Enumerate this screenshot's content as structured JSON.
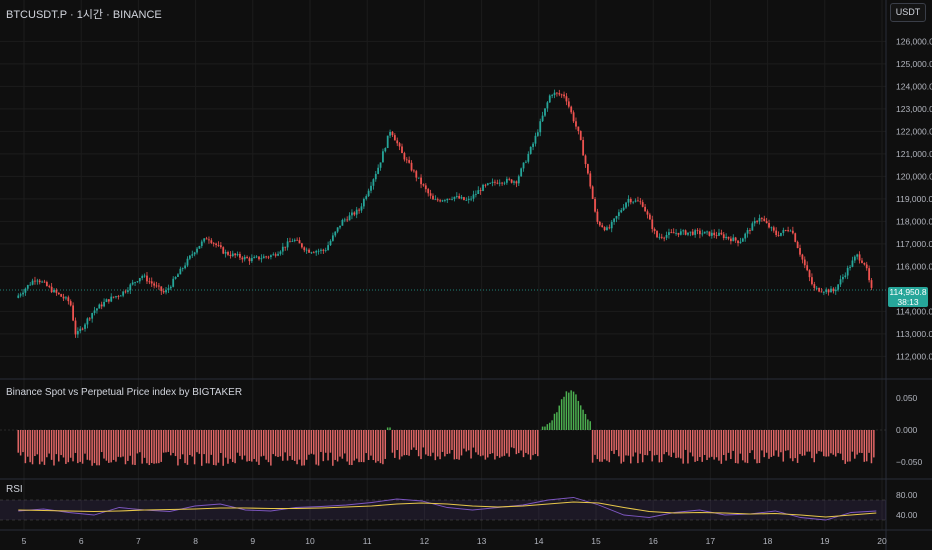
{
  "header": {
    "symbol_title": "BTCUSDT.P · 1시간 · BINANCE",
    "currency_button": "USDT"
  },
  "price_axis": {
    "labels": [
      "126,000.0",
      "125,000.0",
      "124,000.0",
      "123,000.0",
      "122,000.0",
      "121,000.0",
      "120,000.0",
      "119,000.0",
      "118,000.0",
      "117,000.0",
      "116,000.0",
      "114,000.0",
      "113,000.0",
      "112,000.0"
    ],
    "current_price": "114,950.8",
    "countdown": "38:13"
  },
  "indicator_panel": {
    "label": "Binance Spot vs Perpetual Price index by BIGTAKER",
    "axis_labels": [
      "0.050",
      "0.000",
      "−0.050"
    ]
  },
  "rsi_panel": {
    "label": "RSI",
    "axis_labels": [
      "80.00",
      "40.00"
    ]
  },
  "time_axis": {
    "labels": [
      "5",
      "6",
      "7",
      "8",
      "9",
      "10",
      "11",
      "12",
      "13",
      "14",
      "15",
      "16",
      "17",
      "18",
      "19",
      "20"
    ]
  },
  "colors": {
    "background": "#0f0f0f",
    "up": "#26a69a",
    "down": "#ef5350",
    "index_negative": "#e06666",
    "index_positive": "#4caf50",
    "rsi_line": "#7e57c2",
    "rsi_ma": "#e8c74a",
    "rsi_band": "#7e57c2",
    "grid": "#1c1c1c",
    "axis_text": "#b2b5be"
  },
  "chart_data": [
    {
      "type": "candlestick",
      "title": "BTCUSDT.P · 1시간 · BINANCE",
      "xlabel": "",
      "ylabel": "",
      "x_ticks": [
        "5",
        "6",
        "7",
        "8",
        "9",
        "10",
        "11",
        "12",
        "13",
        "14",
        "15",
        "16",
        "17",
        "18",
        "19",
        "20"
      ],
      "ylim": [
        111700,
        126700
      ],
      "price_path": [
        [
          4.9,
          114600
        ],
        [
          5.25,
          115500
        ],
        [
          5.55,
          114900
        ],
        [
          5.85,
          114400
        ],
        [
          5.95,
          112900
        ],
        [
          6.25,
          114000
        ],
        [
          6.5,
          114500
        ],
        [
          6.75,
          114800
        ],
        [
          7.1,
          115600
        ],
        [
          7.5,
          114800
        ],
        [
          7.75,
          115700
        ],
        [
          8.05,
          116800
        ],
        [
          8.25,
          117300
        ],
        [
          8.55,
          116600
        ],
        [
          9.0,
          116300
        ],
        [
          9.4,
          116500
        ],
        [
          9.75,
          117200
        ],
        [
          10.0,
          116700
        ],
        [
          10.3,
          116700
        ],
        [
          10.6,
          118000
        ],
        [
          10.9,
          118500
        ],
        [
          11.25,
          120500
        ],
        [
          11.45,
          122100
        ],
        [
          11.65,
          121000
        ],
        [
          11.9,
          120000
        ],
        [
          12.2,
          118900
        ],
        [
          12.55,
          119100
        ],
        [
          12.8,
          118900
        ],
        [
          13.05,
          119500
        ],
        [
          13.35,
          119800
        ],
        [
          13.65,
          119800
        ],
        [
          13.95,
          121500
        ],
        [
          14.25,
          123700
        ],
        [
          14.5,
          123600
        ],
        [
          14.75,
          121800
        ],
        [
          14.95,
          119500
        ],
        [
          15.05,
          118000
        ],
        [
          15.25,
          117600
        ],
        [
          15.6,
          119000
        ],
        [
          15.85,
          118800
        ],
        [
          16.1,
          117300
        ],
        [
          16.45,
          117500
        ],
        [
          16.8,
          117500
        ],
        [
          17.2,
          117400
        ],
        [
          17.55,
          117100
        ],
        [
          17.9,
          118200
        ],
        [
          18.2,
          117400
        ],
        [
          18.45,
          117700
        ],
        [
          18.65,
          116300
        ],
        [
          18.85,
          115000
        ],
        [
          19.2,
          114900
        ],
        [
          19.4,
          115700
        ],
        [
          19.6,
          116500
        ],
        [
          19.75,
          116100
        ],
        [
          19.85,
          114950
        ]
      ]
    },
    {
      "type": "bar",
      "title": "Binance Spot vs Perpetual Price index by BIGTAKER",
      "ylim": [
        -0.07,
        0.06
      ],
      "segments": [
        {
          "from": 4.9,
          "to": 11.35,
          "base": -0.045,
          "color": "negative"
        },
        {
          "from": 11.35,
          "to": 11.4,
          "base": 0.052,
          "color": "positive"
        },
        {
          "from": 11.4,
          "to": 14.0,
          "base": -0.038,
          "color": "negative"
        },
        {
          "from": 14.05,
          "to": 14.9,
          "base": 0.03,
          "color": "positive"
        },
        {
          "from": 14.9,
          "to": 19.9,
          "base": -0.042,
          "color": "negative"
        }
      ],
      "peak": {
        "x": 14.55,
        "value": 0.058
      }
    },
    {
      "type": "line",
      "title": "RSI",
      "ylim": [
        20,
        90
      ],
      "band": [
        30,
        70
      ],
      "series": [
        {
          "values": [
            48,
            52,
            45,
            40,
            55,
            50,
            47,
            58,
            62,
            50,
            48,
            55,
            57,
            60,
            65,
            72,
            68,
            55,
            50,
            55,
            60,
            70,
            75,
            60,
            40,
            35,
            45,
            50,
            40,
            42,
            48,
            35,
            30,
            45,
            48
          ]
        },
        {
          "values": [
            50,
            49,
            48,
            47,
            48,
            50,
            51,
            52,
            54,
            54,
            53,
            53,
            54,
            56,
            58,
            62,
            64,
            62,
            58,
            56,
            58,
            62,
            66,
            64,
            55,
            47,
            44,
            45,
            44,
            42,
            43,
            40,
            36,
            40,
            44
          ]
        }
      ]
    }
  ]
}
